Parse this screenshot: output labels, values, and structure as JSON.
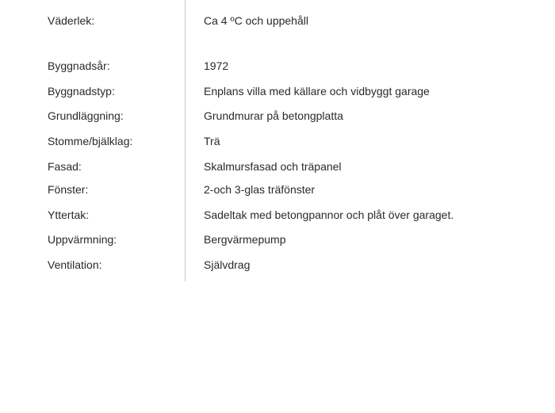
{
  "section1": {
    "weather_label": "Väderlek:",
    "weather_value": "Ca 4 ºC och uppehåll"
  },
  "section2": {
    "year_label": "Byggnadsår:",
    "year_value": "1972",
    "type_label": "Byggnadstyp:",
    "type_value": "Enplans villa med källare och vidbyggt garage",
    "foundation_label": "Grundläggning:",
    "foundation_value": "Grundmurar på betongplatta",
    "frame_label": "Stomme/bjälklag:",
    "frame_value": "Trä",
    "facade_label": "Fasad:",
    "facade_value": "Skalmursfasad och träpanel",
    "windows_label": "Fönster:",
    "windows_value": "2-och 3-glas träfönster",
    "roof_label": "Yttertak:",
    "roof_value": "Sadeltak med betongpannor och plåt över garaget.",
    "heating_label": "Uppvärmning:",
    "heating_value": "Bergvärmepump",
    "ventilation_label": "Ventilation:",
    "ventilation_value": "Självdrag"
  },
  "styling": {
    "text_color": "#2a2a2a",
    "divider_color": "#c8c8c8",
    "background_color": "#ffffff",
    "font_size": 14,
    "font_family": "Arial"
  }
}
